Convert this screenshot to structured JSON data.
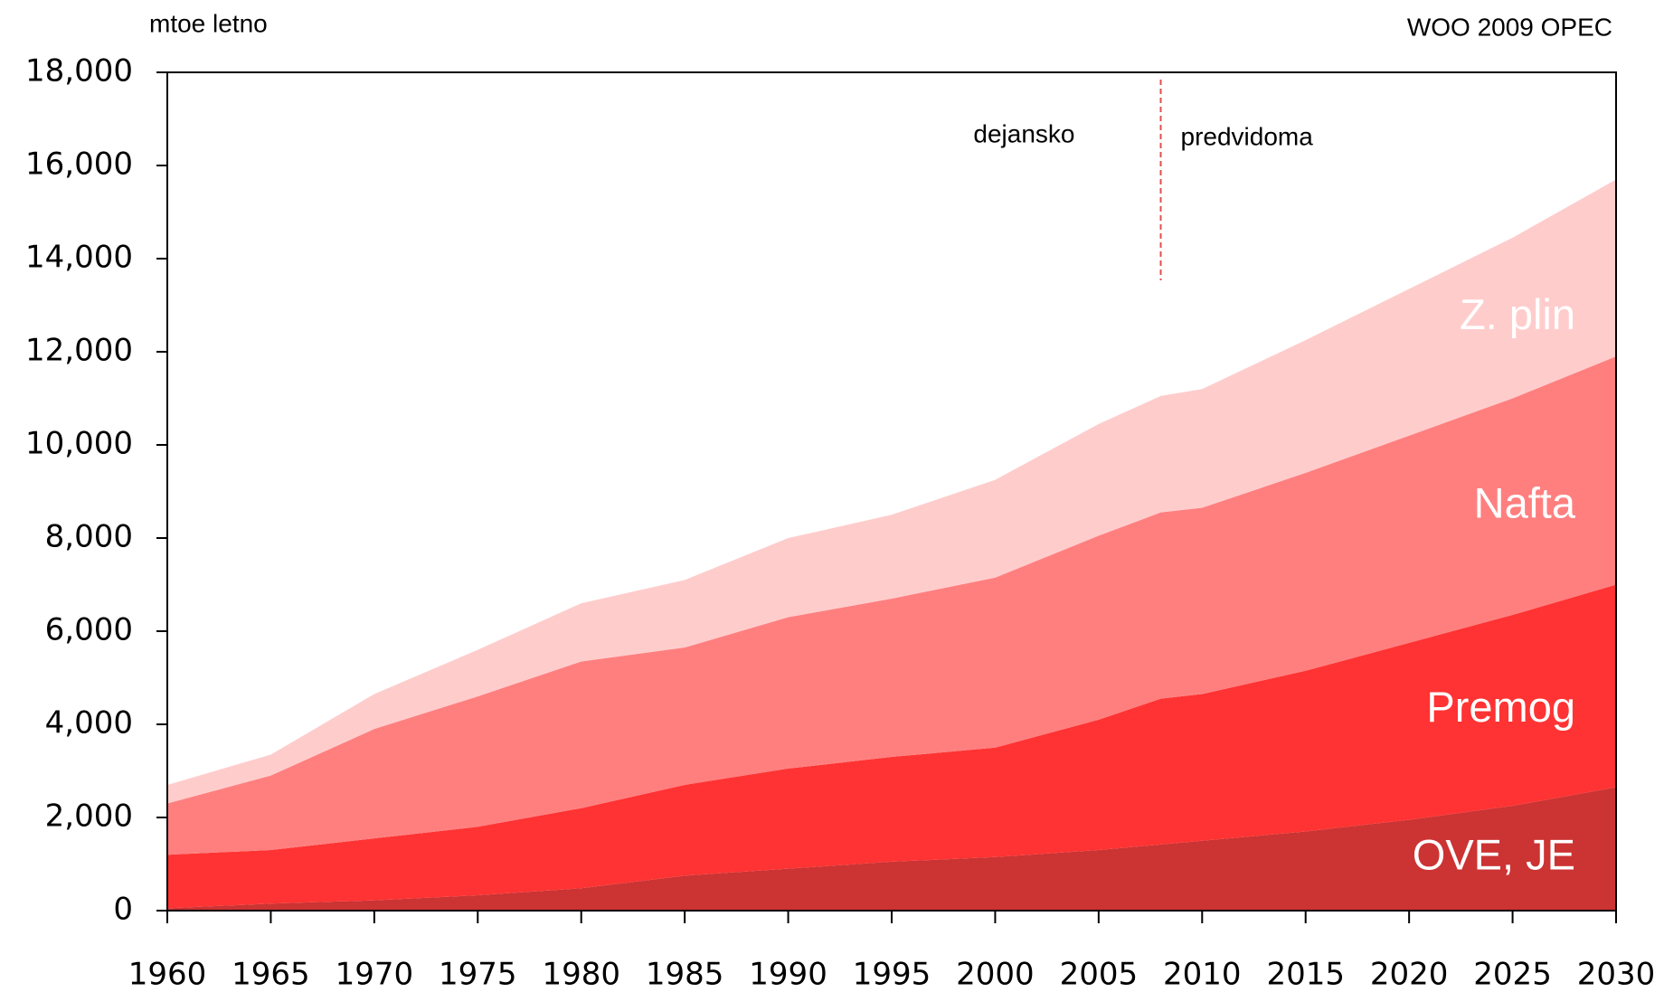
{
  "chart_data": {
    "type": "stacked_area",
    "title": "mtoe letno",
    "source": "WOO 2009 OPEC",
    "annotations": [
      {
        "text": "dejansko"
      },
      {
        "text": "predvidoma"
      }
    ],
    "divider": 2008,
    "x": [
      1960,
      1965,
      1970,
      1975,
      1980,
      1985,
      1990,
      1995,
      2000,
      2005,
      2008,
      2010,
      2015,
      2020,
      2025,
      2030
    ],
    "series": [
      {
        "name": "OVE, JE",
        "color": "#cc3333",
        "values": [
          50,
          150,
          220,
          330,
          480,
          750,
          900,
          1050,
          1150,
          1300,
          1420,
          1500,
          1700,
          1950,
          2250,
          2650
        ]
      },
      {
        "name": "Premog",
        "color": "#ff3333",
        "values": [
          1150,
          1150,
          1330,
          1470,
          1720,
          1950,
          2150,
          2250,
          2350,
          2800,
          3130,
          3150,
          3450,
          3800,
          4100,
          4350
        ]
      },
      {
        "name": "Nafta",
        "color": "#ff7f7f",
        "values": [
          1100,
          1600,
          2350,
          2800,
          3150,
          2950,
          3250,
          3400,
          3650,
          3950,
          4000,
          4000,
          4250,
          4450,
          4650,
          4900
        ]
      },
      {
        "name": "Z. plin",
        "color": "#ffcccc",
        "values": [
          400,
          450,
          750,
          1000,
          1250,
          1450,
          1700,
          1800,
          2100,
          2400,
          2500,
          2550,
          2850,
          3150,
          3450,
          3800
        ]
      }
    ],
    "xlim": [
      1960,
      2030
    ],
    "xticks": [
      1960,
      1965,
      1970,
      1975,
      1980,
      1985,
      1990,
      1995,
      2000,
      2005,
      2010,
      2015,
      2020,
      2025,
      2030
    ],
    "ylim": [
      0,
      18000
    ],
    "yticks": [
      0,
      {
        "value": 2000,
        "label": "2,000"
      },
      {
        "value": 4000,
        "label": "4,000"
      },
      {
        "value": 6000,
        "label": "6,000"
      },
      {
        "value": 8000,
        "label": "8,000"
      },
      {
        "value": 10000,
        "label": "10,000"
      },
      {
        "value": 12000,
        "label": "12,000"
      },
      {
        "value": 14000,
        "label": "14,000"
      },
      {
        "value": 16000,
        "label": "16,000"
      },
      {
        "value": 18000,
        "label": "18,000"
      }
    ]
  }
}
